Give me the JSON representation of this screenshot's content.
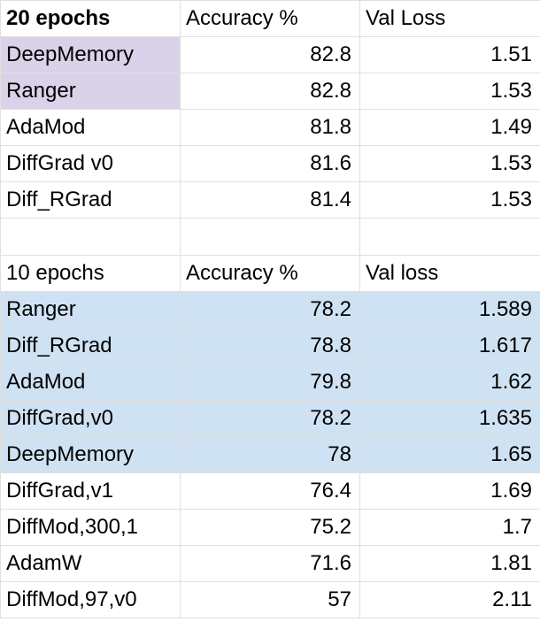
{
  "table1": {
    "headers": [
      "20 epochs",
      "Accuracy %",
      "Val Loss"
    ],
    "rows": [
      [
        "DeepMemory",
        "82.8",
        "1.51"
      ],
      [
        "Ranger",
        "82.8",
        "1.53"
      ],
      [
        "AdaMod",
        "81.8",
        "1.49"
      ],
      [
        "DiffGrad v0",
        "81.6",
        "1.53"
      ],
      [
        "Diff_RGrad",
        "81.4",
        "1.53"
      ]
    ]
  },
  "table2": {
    "headers": [
      "10 epochs",
      "Accuracy %",
      "Val loss"
    ],
    "rows": [
      [
        "Ranger",
        "78.2",
        "1.589"
      ],
      [
        "Diff_RGrad",
        "78.8",
        "1.617"
      ],
      [
        "AdaMod",
        "79.8",
        "1.62"
      ],
      [
        "DiffGrad,v0",
        "78.2",
        "1.635"
      ],
      [
        "DeepMemory",
        "78",
        "1.65"
      ],
      [
        "DiffGrad,v1",
        "76.4",
        "1.69"
      ],
      [
        "DiffMod,300,1",
        "75.2",
        "1.7"
      ],
      [
        "AdamW",
        "71.6",
        "1.81"
      ],
      [
        "DiffMod,97,v0",
        "57",
        "2.11"
      ]
    ]
  },
  "colors": {
    "purple_highlight": "#d9d2e9",
    "blue_highlight": "#cfe2f3",
    "gridline": "#e0e0e0"
  }
}
